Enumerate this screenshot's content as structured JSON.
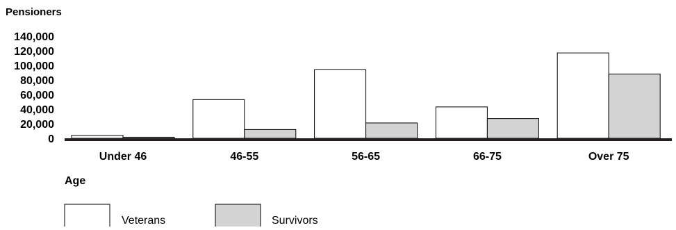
{
  "chart_data": {
    "type": "bar",
    "ylabel": "Pensioners",
    "xlabel": "Age",
    "categories": [
      "Under 46",
      "46-55",
      "56-65",
      "66-75",
      "Over 75"
    ],
    "series": [
      {
        "name": "Veterans",
        "values": [
          4000,
          53000,
          94000,
          43000,
          117000
        ],
        "color": "#ffffff"
      },
      {
        "name": "Survivors",
        "values": [
          1500,
          12000,
          21000,
          27000,
          88000
        ],
        "color": "#d3d3d3"
      }
    ],
    "ylim": [
      0,
      140000
    ],
    "yticks": [
      "140,000",
      "120,000",
      "100,000",
      "80,000",
      "60,000",
      "40,000",
      "20,000",
      "0"
    ],
    "grid": false,
    "legend": "bottom-left"
  }
}
